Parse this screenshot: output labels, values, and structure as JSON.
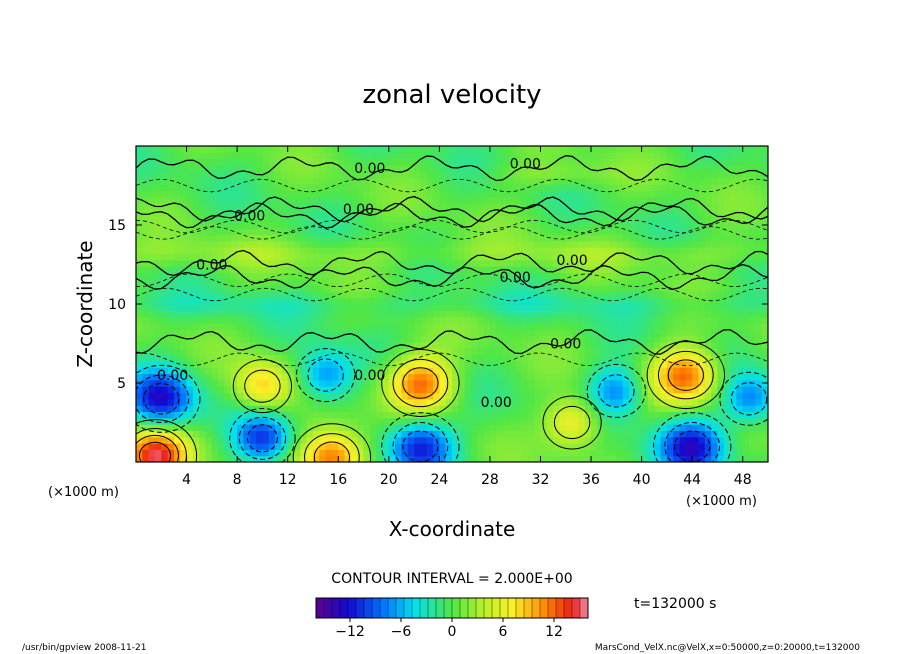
{
  "chart_data": {
    "type": "heatmap",
    "title": "zonal velocity",
    "xlabel": "X-coordinate",
    "ylabel": "Z-coordinate",
    "x_unit": "(×1000 m)",
    "z_unit": "(×1000 m)",
    "xlim": [
      0,
      50
    ],
    "zlim": [
      0,
      20
    ],
    "x_ticks": [
      4,
      8,
      12,
      16,
      20,
      24,
      28,
      32,
      36,
      40,
      44,
      48
    ],
    "z_ticks": [
      5,
      10,
      15
    ],
    "contour_interval_text": "CONTOUR INTERVAL = 2.000E+00",
    "time_label": "t=132000 s",
    "color_range": [
      -16,
      16
    ],
    "colorbar_ticks": [
      -12,
      -6,
      0,
      6,
      12
    ],
    "contour_labels": [
      {
        "text": "0.00",
        "x": 18.5,
        "z": 18.6
      },
      {
        "text": "0.00",
        "x": 30.8,
        "z": 18.9
      },
      {
        "text": "0.00",
        "x": 17.6,
        "z": 16.0
      },
      {
        "text": "0.00",
        "x": 9.0,
        "z": 15.6
      },
      {
        "text": "0.00",
        "x": 6.0,
        "z": 12.5
      },
      {
        "text": "0.00",
        "x": 34.5,
        "z": 12.8
      },
      {
        "text": "0.00",
        "x": 30.0,
        "z": 11.7
      },
      {
        "text": "0.00",
        "x": 34.0,
        "z": 7.5
      },
      {
        "text": "0.00",
        "x": 2.9,
        "z": 5.5
      },
      {
        "text": "0.00",
        "x": 28.5,
        "z": 3.8
      },
      {
        "text": "0.00",
        "x": 18.5,
        "z": 5.5
      }
    ],
    "extrema_regions": [
      {
        "sign": "positive",
        "x": 22.5,
        "z": 5.0,
        "peak": 12
      },
      {
        "sign": "positive",
        "x": 43.5,
        "z": 5.5,
        "peak": 12
      },
      {
        "sign": "positive",
        "x": 1.5,
        "z": 0.4,
        "peak": 14
      },
      {
        "sign": "positive",
        "x": 15.5,
        "z": 0.3,
        "peak": 13
      },
      {
        "sign": "positive",
        "x": 34.5,
        "z": 2.5,
        "peak": 8
      },
      {
        "sign": "positive",
        "x": 10.0,
        "z": 4.8,
        "peak": 8
      },
      {
        "sign": "negative",
        "x": 2.0,
        "z": 4.0,
        "peak": -12
      },
      {
        "sign": "negative",
        "x": 15.0,
        "z": 5.5,
        "peak": -8
      },
      {
        "sign": "negative",
        "x": 10.0,
        "z": 1.5,
        "peak": -10
      },
      {
        "sign": "negative",
        "x": 22.5,
        "z": 1.0,
        "peak": -12
      },
      {
        "sign": "negative",
        "x": 44.0,
        "z": 1.0,
        "peak": -12
      },
      {
        "sign": "negative",
        "x": 38.0,
        "z": 4.5,
        "peak": -8
      },
      {
        "sign": "negative",
        "x": 48.5,
        "z": 4.0,
        "peak": -8
      }
    ]
  },
  "footer": {
    "left": "/usr/bin/gpview  2008-11-21",
    "right": "MarsCond_VelX.nc@VelX,x=0:50000,z=0:20000,t=132000"
  }
}
